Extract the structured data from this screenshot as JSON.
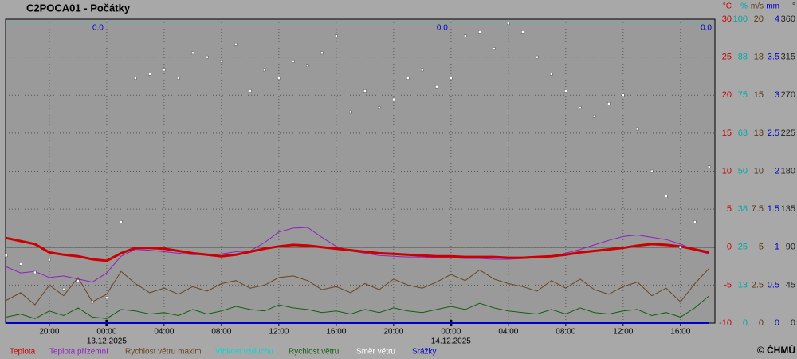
{
  "chart_data": {
    "type": "line",
    "title": "C2POCA01 - Počátky",
    "copyright": "© ČHMÚ",
    "grid": true,
    "xlim": [
      -7.05,
      42.4
    ],
    "xticks": [
      {
        "value": -4,
        "label": "20:00"
      },
      {
        "value": 0,
        "label": "00:00"
      },
      {
        "value": 4,
        "label": "04:00"
      },
      {
        "value": 8,
        "label": "08:00"
      },
      {
        "value": 12,
        "label": "12:00"
      },
      {
        "value": 16,
        "label": "16:00"
      },
      {
        "value": 20,
        "label": "20:00"
      },
      {
        "value": 24,
        "label": "00:00"
      },
      {
        "value": 28,
        "label": "04:00"
      },
      {
        "value": 32,
        "label": "08:00"
      },
      {
        "value": 36,
        "label": "12:00"
      },
      {
        "value": 40,
        "label": "16:00"
      }
    ],
    "date_ticks": [
      {
        "value": 0,
        "label": "13.12.2025"
      },
      {
        "value": 24,
        "label": "14.12.2025"
      }
    ],
    "axes": [
      {
        "unit": "°C",
        "color": "#cc0000",
        "lim": [
          -10,
          30
        ],
        "ticks": [
          -10,
          -5,
          0,
          5,
          10,
          15,
          20,
          25,
          30
        ]
      },
      {
        "unit": "%",
        "color": "#00a8a8",
        "lim": [
          0,
          100
        ],
        "ticks": [
          0,
          {
            "value": 12.5,
            "label": "13"
          },
          25,
          {
            "value": 37.5,
            "label": "38"
          },
          50,
          {
            "value": 62.5,
            "label": "63"
          },
          75,
          {
            "value": 87.5,
            "label": "88"
          },
          100
        ]
      },
      {
        "unit": "m/s",
        "color": "#5a3a10",
        "lim": [
          0,
          20
        ],
        "ticks": [
          0,
          2.5,
          5,
          7.5,
          10,
          {
            "value": 12.5,
            "label": "13"
          },
          15,
          {
            "value": 17.5,
            "label": "18"
          },
          20
        ]
      },
      {
        "unit": "mm",
        "color": "#0000cc",
        "lim": [
          0,
          4
        ],
        "ticks": [
          0,
          0.5,
          1,
          1.5,
          2,
          2.5,
          3,
          3.5,
          4
        ]
      },
      {
        "unit": "°",
        "color": "#222222",
        "lim": [
          0,
          360
        ],
        "ticks": [
          0,
          45,
          90,
          135,
          180,
          225,
          270,
          315,
          360
        ]
      }
    ],
    "x": [
      -7,
      -6,
      -5,
      -4,
      -3,
      -2,
      -1,
      0,
      1,
      2,
      3,
      4,
      5,
      6,
      7,
      8,
      9,
      10,
      11,
      12,
      13,
      14,
      15,
      16,
      17,
      18,
      19,
      20,
      21,
      22,
      23,
      24,
      25,
      26,
      27,
      28,
      29,
      30,
      31,
      32,
      33,
      34,
      35,
      36,
      37,
      38,
      39,
      40,
      41,
      42
    ],
    "series": [
      {
        "name": "Vlhkost vzduchu",
        "color": "#00d8d8",
        "axis": 1,
        "line_width": 1,
        "values": [
          99,
          99,
          99,
          99,
          99,
          99,
          99,
          99,
          99,
          99,
          99,
          99,
          99,
          99,
          99,
          99,
          99,
          99,
          99,
          99,
          99,
          99,
          99,
          99,
          99,
          99,
          99,
          99,
          99,
          99,
          99,
          99,
          99,
          99,
          99,
          99,
          99,
          99,
          99,
          99,
          99,
          99,
          99,
          99,
          99,
          99,
          99,
          99,
          99,
          99
        ]
      },
      {
        "name": "Srážky",
        "color": "#0000cc",
        "axis": 3,
        "line_width": 2,
        "values": [
          0,
          0,
          0,
          0,
          0,
          0,
          0,
          0,
          0,
          0,
          0,
          0,
          0,
          0,
          0,
          0,
          0,
          0,
          0,
          0,
          0,
          0,
          0,
          0,
          0,
          0,
          0,
          0,
          0,
          0,
          0,
          0,
          0,
          0,
          0,
          0,
          0,
          0,
          0,
          0,
          0,
          0,
          0,
          0,
          0,
          0,
          0,
          0,
          0,
          0
        ]
      },
      {
        "name": "Rychlost větru maxim",
        "color": "#6a4420",
        "axis": 2,
        "line_width": 1,
        "values": [
          1.5,
          2.0,
          1.2,
          2.5,
          1.8,
          3.0,
          1.4,
          1.9,
          3.4,
          2.6,
          2.0,
          2.3,
          1.9,
          2.4,
          2.1,
          2.6,
          2.8,
          2.3,
          2.5,
          3.0,
          3.1,
          2.8,
          2.2,
          2.4,
          2.0,
          2.6,
          2.2,
          2.9,
          2.5,
          2.3,
          2.7,
          3.2,
          2.8,
          3.5,
          2.9,
          2.6,
          2.4,
          2.1,
          2.8,
          2.3,
          2.9,
          2.2,
          1.9,
          2.4,
          2.7,
          1.8,
          2.3,
          1.4,
          2.6,
          3.6
        ]
      },
      {
        "name": "Rychlost větru",
        "color": "#106010",
        "axis": 2,
        "line_width": 1,
        "values": [
          0.4,
          0.6,
          0.3,
          0.8,
          0.5,
          1.0,
          0.4,
          0.3,
          0.9,
          0.8,
          0.6,
          0.7,
          0.5,
          0.9,
          0.6,
          0.8,
          1.1,
          0.9,
          0.8,
          1.2,
          1.0,
          0.9,
          0.7,
          0.8,
          0.6,
          0.9,
          0.7,
          1.0,
          0.8,
          0.7,
          0.9,
          1.1,
          0.9,
          1.3,
          1.0,
          0.8,
          0.7,
          0.6,
          0.9,
          0.6,
          1.0,
          0.7,
          0.6,
          0.8,
          0.9,
          0.5,
          0.7,
          0.4,
          1.0,
          1.8
        ]
      },
      {
        "name": "Teplota přízemní",
        "color": "#9020c0",
        "axis": 0,
        "line_width": 1,
        "values": [
          -2.6,
          -3.4,
          -3.2,
          -4.0,
          -3.8,
          -4.2,
          -4.6,
          -3.4,
          -1.2,
          -0.3,
          -0.4,
          -0.6,
          -0.8,
          -1.0,
          -1.0,
          -0.9,
          -0.6,
          -0.5,
          0.6,
          2.0,
          2.5,
          2.6,
          1.3,
          0.1,
          -0.5,
          -0.8,
          -1.1,
          -1.2,
          -1.3,
          -1.3,
          -1.4,
          -1.4,
          -1.5,
          -1.5,
          -1.6,
          -1.6,
          -1.5,
          -1.4,
          -1.2,
          -0.8,
          -0.3,
          0.3,
          0.9,
          1.4,
          1.6,
          1.3,
          1.0,
          0.4,
          -0.4,
          -0.9
        ]
      },
      {
        "name": "Teplota",
        "color": "#cc0000",
        "axis": 0,
        "line_width": 3,
        "values": [
          1.2,
          0.8,
          0.4,
          -0.7,
          -1.0,
          -1.2,
          -1.6,
          -1.8,
          -0.8,
          -0.1,
          -0.1,
          -0.2,
          -0.5,
          -0.8,
          -1.0,
          -1.2,
          -1.0,
          -0.6,
          -0.2,
          0.1,
          0.3,
          0.2,
          0.0,
          -0.2,
          -0.4,
          -0.6,
          -0.8,
          -0.9,
          -1.0,
          -1.1,
          -1.2,
          -1.2,
          -1.3,
          -1.3,
          -1.3,
          -1.4,
          -1.4,
          -1.3,
          -1.2,
          -1.0,
          -0.7,
          -0.5,
          -0.3,
          -0.1,
          0.2,
          0.4,
          0.3,
          0.1,
          -0.3,
          -0.7
        ]
      },
      {
        "name": "Směr větru",
        "color": "#ffffff",
        "axis": 4,
        "markers": true,
        "values": [
          80,
          70,
          60,
          75,
          40,
          50,
          25,
          30,
          120,
          290,
          295,
          300,
          290,
          320,
          315,
          310,
          330,
          275,
          300,
          290,
          310,
          305,
          320,
          340,
          250,
          275,
          255,
          265,
          290,
          300,
          280,
          290,
          340,
          345,
          325,
          355,
          345,
          315,
          295,
          275,
          255,
          245,
          260,
          270,
          230,
          180,
          150,
          90,
          120,
          185
        ]
      }
    ],
    "precip_totals": {
      "x": [
        0,
        24,
        42.4
      ],
      "values": [
        0,
        0,
        0
      ],
      "value_labels": [
        "0.0",
        "0.0",
        "0.0"
      ]
    }
  }
}
